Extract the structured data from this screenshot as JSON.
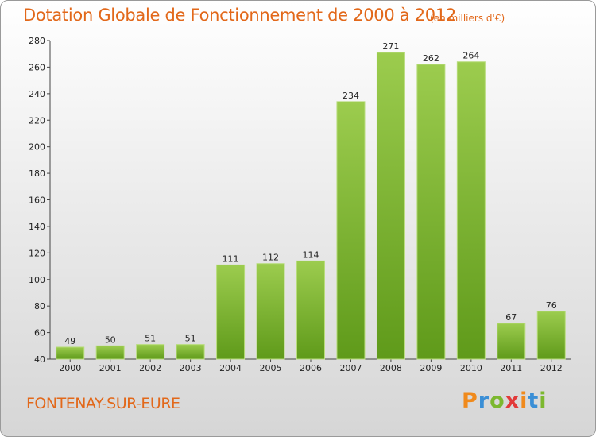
{
  "chart_data": {
    "type": "bar",
    "title": "Dotation Globale de Fonctionnement de 2000 à 2012",
    "subtitle": "(en milliers d'€)",
    "categories": [
      "2000",
      "2001",
      "2002",
      "2003",
      "2004",
      "2005",
      "2006",
      "2007",
      "2008",
      "2009",
      "2010",
      "2011",
      "2012"
    ],
    "values": [
      49,
      50,
      51,
      51,
      111,
      112,
      114,
      234,
      271,
      262,
      264,
      67,
      76
    ],
    "ylim": [
      40,
      280
    ],
    "yticks": [
      40,
      60,
      80,
      100,
      120,
      140,
      160,
      180,
      200,
      220,
      240,
      260,
      280
    ],
    "xlabel": "",
    "ylabel": "",
    "grid": false,
    "bar_color": "#7cb82f"
  },
  "footer": {
    "commune": "FONTENAY-SUR-EURE",
    "logo_letters": [
      "P",
      "r",
      "o",
      "x",
      "i",
      "t",
      "i"
    ],
    "logo_colors": [
      "#f08a1c",
      "#3b8fd6",
      "#7cb82f",
      "#e23a3a",
      "#f08a1c",
      "#3b8fd6",
      "#7cb82f"
    ]
  }
}
